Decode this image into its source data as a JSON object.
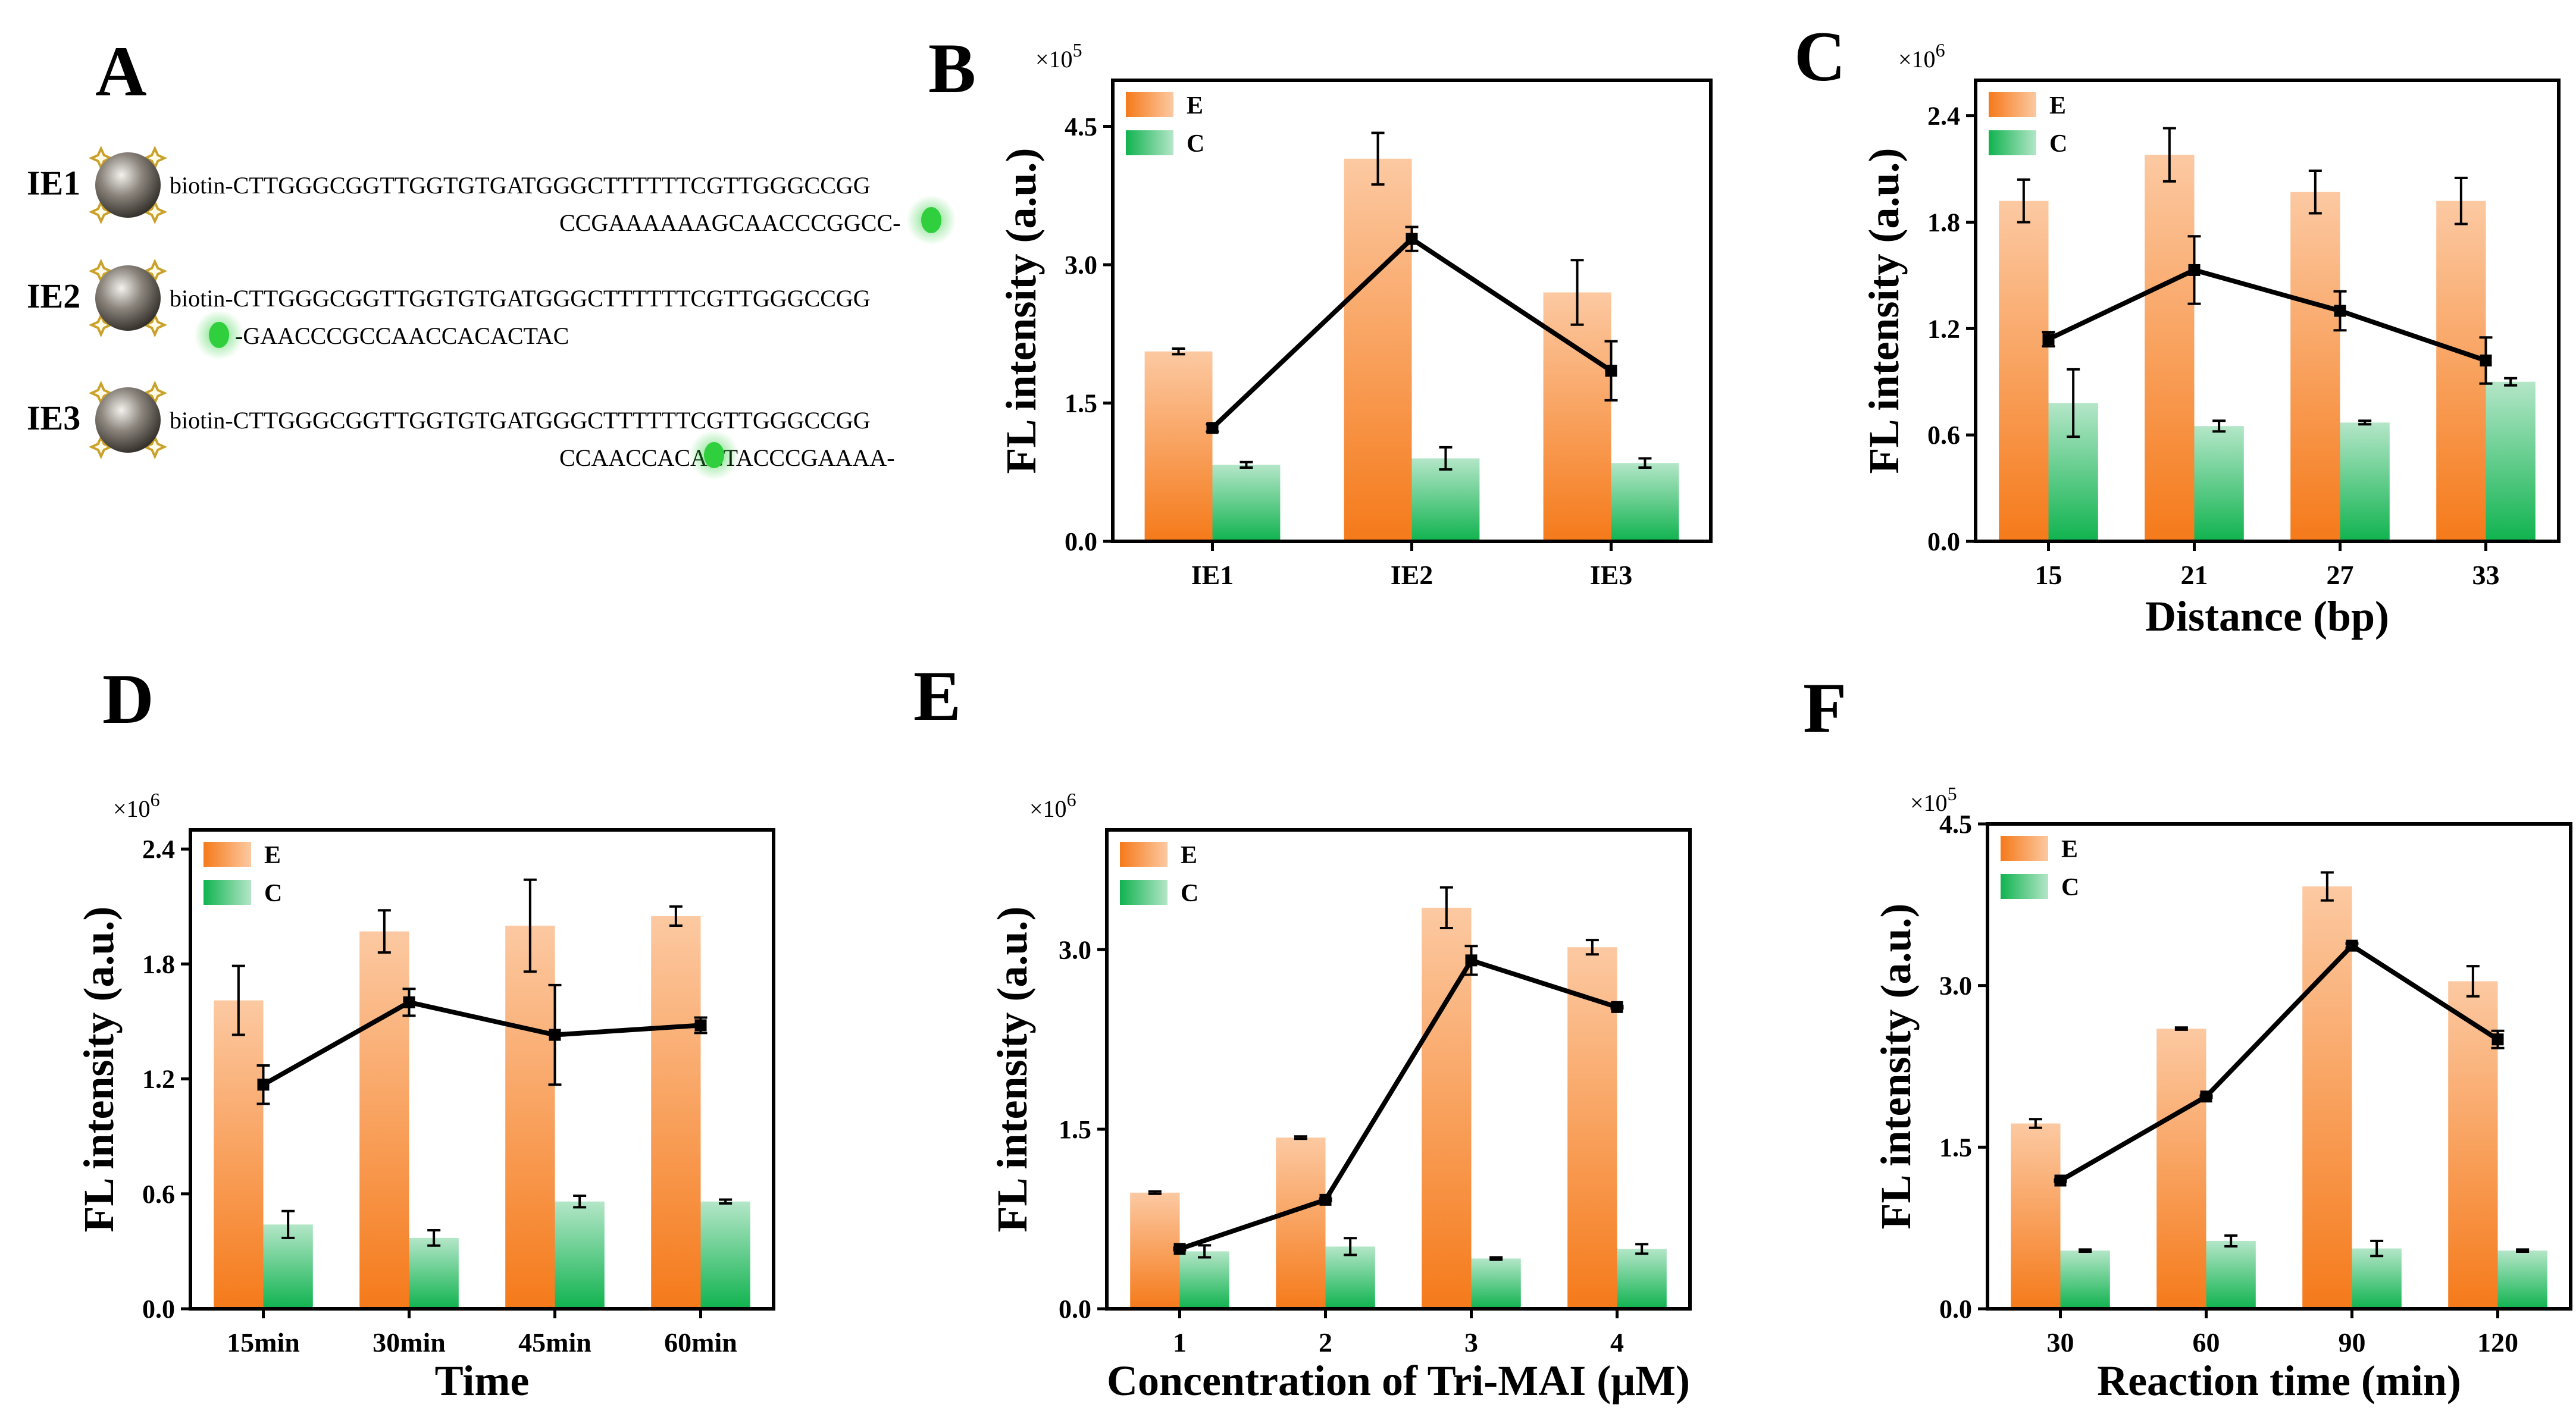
{
  "colors": {
    "e_bar_top": "#fcc9a2",
    "e_bar_bottom": "#f57a1a",
    "c_bar_top": "#b4e6c8",
    "c_bar_bottom": "#10b34f",
    "line": "#000000",
    "glow": "#2fcf3d",
    "gold": "#d9b54a"
  },
  "panel_a": {
    "label": "A",
    "rows": [
      {
        "name": "IE1",
        "top": "biotin-CTTGGGCGGTTGGTGTGATGGGCTTTTTTCGTTGGGCCGG",
        "bottom": "CCGAAAAAAGCAACCCGGCC-",
        "dye_side": "right"
      },
      {
        "name": "IE2",
        "top": "biotin-CTTGGGCGGTTGGTGTGATGGGCTTTTTTCGTTGGGCCGG",
        "bottom": "-GAACCCGCCAACCACACTAC",
        "dye_side": "left"
      },
      {
        "name": "IE3",
        "top": "biotin-CTTGGGCGGTTGGTGTGATGGGCTTTTTTCGTTGGGCCGG",
        "bottom": "CCAACCACACTACCCGAAAA-",
        "dye_side": "right"
      }
    ]
  },
  "chart_data": [
    {
      "panel": "B",
      "type": "bar+line",
      "categories": [
        "IE1",
        "IE2",
        "IE3"
      ],
      "ylim": [
        0,
        5.0
      ],
      "yticks": [
        "0.0",
        "1.5",
        "3.0",
        "4.5"
      ],
      "ytick_values": [
        0,
        1.5,
        3.0,
        4.5
      ],
      "multiplier": "×10",
      "multiplier_exp": "5",
      "ylabel": "FL intensity (a.u.)",
      "xlabel": "",
      "legend": [
        "E",
        "C"
      ],
      "series": [
        {
          "name": "E",
          "values": [
            2.06,
            4.15,
            2.7
          ],
          "errors": [
            0.03,
            0.28,
            0.35
          ]
        },
        {
          "name": "C",
          "values": [
            0.83,
            0.9,
            0.85
          ],
          "errors": [
            0.03,
            0.12,
            0.05
          ]
        }
      ],
      "line": {
        "values": [
          1.23,
          3.28,
          1.85
        ],
        "errors": [
          0.04,
          0.13,
          0.32
        ]
      }
    },
    {
      "panel": "C",
      "type": "bar+line",
      "categories": [
        "15",
        "21",
        "27",
        "33"
      ],
      "ylim": [
        0,
        2.6
      ],
      "yticks": [
        "0.0",
        "0.6",
        "1.2",
        "1.8",
        "2.4"
      ],
      "ytick_values": [
        0,
        0.6,
        1.2,
        1.8,
        2.4
      ],
      "multiplier": "×10",
      "multiplier_exp": "6",
      "ylabel": "FL intensity (a.u.)",
      "xlabel": "Distance (bp)",
      "legend": [
        "E",
        "C"
      ],
      "series": [
        {
          "name": "E",
          "values": [
            1.92,
            2.18,
            1.97,
            1.92
          ],
          "errors": [
            0.12,
            0.15,
            0.12,
            0.13
          ]
        },
        {
          "name": "C",
          "values": [
            0.78,
            0.65,
            0.67,
            0.9
          ],
          "errors": [
            0.19,
            0.03,
            0.01,
            0.02
          ]
        }
      ],
      "line": {
        "values": [
          1.14,
          1.53,
          1.3,
          1.02
        ],
        "errors": [
          0.04,
          0.19,
          0.11,
          0.13
        ]
      }
    },
    {
      "panel": "D",
      "type": "bar+line",
      "categories": [
        "15min",
        "30min",
        "45min",
        "60min"
      ],
      "ylim": [
        0,
        2.5
      ],
      "yticks": [
        "0.0",
        "0.6",
        "1.2",
        "1.8",
        "2.4"
      ],
      "ytick_values": [
        0,
        0.6,
        1.2,
        1.8,
        2.4
      ],
      "multiplier": "×10",
      "multiplier_exp": "6",
      "ylabel": "FL intensity (a.u.)",
      "xlabel": "Time",
      "legend": [
        "E",
        "C"
      ],
      "series": [
        {
          "name": "E",
          "values": [
            1.61,
            1.97,
            2.0,
            2.05
          ],
          "errors": [
            0.18,
            0.11,
            0.24,
            0.05
          ]
        },
        {
          "name": "C",
          "values": [
            0.44,
            0.37,
            0.56,
            0.56
          ],
          "errors": [
            0.07,
            0.04,
            0.03,
            0.01
          ]
        }
      ],
      "line": {
        "values": [
          1.17,
          1.6,
          1.43,
          1.48
        ],
        "errors": [
          0.1,
          0.07,
          0.26,
          0.04
        ]
      }
    },
    {
      "panel": "E",
      "type": "bar+line",
      "categories": [
        "1",
        "2",
        "3",
        "4"
      ],
      "ylim": [
        0,
        4.0
      ],
      "yticks": [
        "0.0",
        "1.5",
        "3.0"
      ],
      "ytick_values": [
        0,
        1.5,
        3.0
      ],
      "multiplier": "×10",
      "multiplier_exp": "6",
      "ylabel": "FL intensity (a.u.)",
      "xlabel": "Concentration of Tri-MAI (μM)",
      "legend": [
        "E",
        "C"
      ],
      "series": [
        {
          "name": "E",
          "values": [
            0.97,
            1.43,
            3.35,
            3.02
          ],
          "errors": [
            0.01,
            0.01,
            0.17,
            0.06
          ]
        },
        {
          "name": "C",
          "values": [
            0.48,
            0.52,
            0.42,
            0.5
          ],
          "errors": [
            0.05,
            0.07,
            0.01,
            0.04
          ]
        }
      ],
      "line": {
        "values": [
          0.5,
          0.91,
          2.91,
          2.52
        ],
        "errors": [
          0.01,
          0.01,
          0.12,
          0.01
        ]
      }
    },
    {
      "panel": "F",
      "type": "bar+line",
      "categories": [
        "30",
        "60",
        "90",
        "120"
      ],
      "ylim": [
        0,
        4.5
      ],
      "yticks": [
        "0.0",
        "1.5",
        "3.0",
        "4.5"
      ],
      "ytick_values": [
        0,
        1.5,
        3.0,
        4.5
      ],
      "multiplier": "×10",
      "multiplier_exp": "5",
      "ylabel": "FL intensity (a.u.)",
      "xlabel": "Reaction time (min)",
      "legend": [
        "E",
        "C"
      ],
      "series": [
        {
          "name": "E",
          "values": [
            1.72,
            2.6,
            3.92,
            3.04
          ],
          "errors": [
            0.04,
            0.01,
            0.13,
            0.14
          ]
        },
        {
          "name": "C",
          "values": [
            0.54,
            0.63,
            0.56,
            0.54
          ],
          "errors": [
            0.01,
            0.05,
            0.07,
            0.01
          ]
        }
      ],
      "line": {
        "values": [
          1.19,
          1.97,
          3.37,
          2.5
        ],
        "errors": [
          0.01,
          0.01,
          0.02,
          0.08
        ]
      }
    }
  ]
}
